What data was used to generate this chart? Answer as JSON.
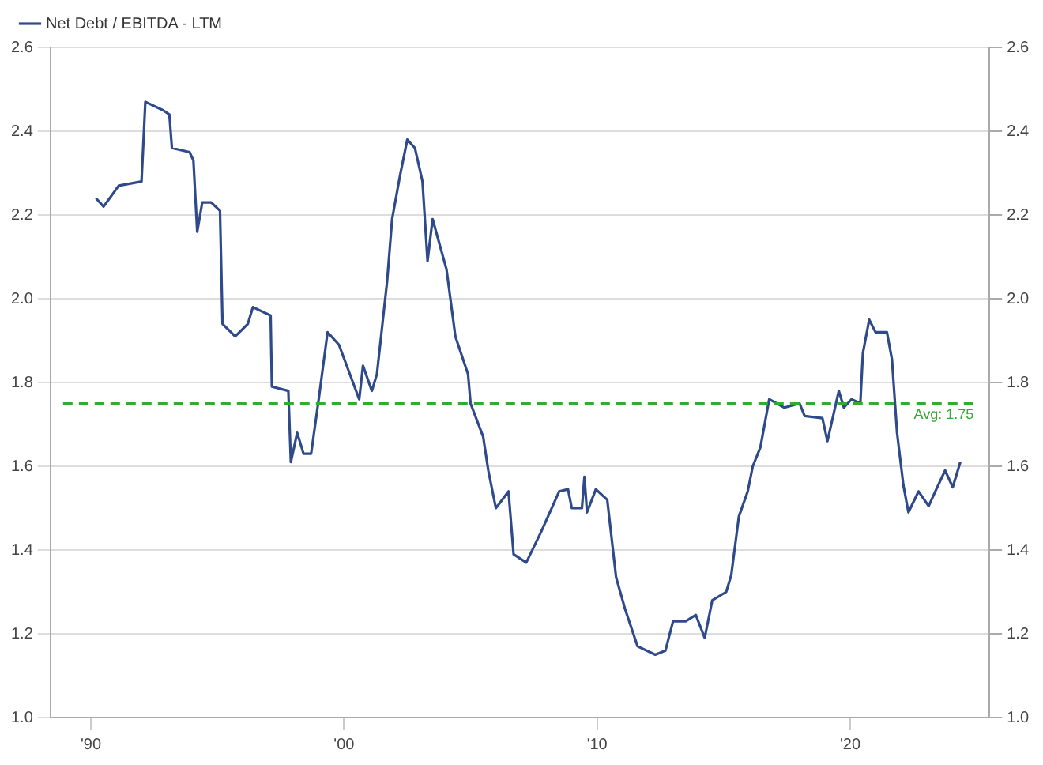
{
  "chart_data": {
    "type": "line",
    "xlim": [
      1988.4,
      2025.5
    ],
    "xticks": [
      {
        "value": 1990,
        "label": "'90"
      },
      {
        "value": 2000,
        "label": "'00"
      },
      {
        "value": 2010,
        "label": "'10"
      },
      {
        "value": 2020,
        "label": "'20"
      }
    ],
    "ylim": [
      1.0,
      2.6
    ],
    "yticks": [
      {
        "value": 1,
        "label": "1.0"
      },
      1.2,
      1.4,
      1.6,
      1.8,
      {
        "value": 2,
        "label": "2.0"
      },
      2.2,
      2.4,
      2.6
    ],
    "y2lim": [
      1.0,
      2.6
    ],
    "y2ticks": [
      {
        "value": 1,
        "label": "1.0"
      },
      1.2,
      1.4,
      1.6,
      1.8,
      {
        "value": 2,
        "label": "2.0"
      },
      2.2,
      2.4,
      2.6
    ],
    "grid": "y",
    "legend": "top left",
    "marker": "none",
    "line_style": "solid",
    "ref_lines": [
      {
        "axis": "y",
        "value": 1.75,
        "label": "Avg: 1.75",
        "color": "#33aa33",
        "line_style": "dashed"
      }
    ],
    "series": [
      {
        "name": "Net Debt / EBITDA - LTM",
        "color": "#2f4a8a",
        "x": [
          1990.2,
          1990.5,
          1991.1,
          1992.0,
          1992.15,
          1992.85,
          1993.1,
          1993.2,
          1993.9,
          1994.05,
          1994.2,
          1994.4,
          1994.75,
          1995.1,
          1995.2,
          1995.7,
          1996.2,
          1996.4,
          1997.1,
          1997.15,
          1997.8,
          1997.9,
          1998.15,
          1998.4,
          1998.7,
          1999.0,
          1999.35,
          1999.8,
          2000.6,
          2000.75,
          2001.1,
          2001.3,
          2001.7,
          2001.9,
          2002.2,
          2002.5,
          2002.8,
          2003.1,
          2003.3,
          2003.5,
          2004.05,
          2004.4,
          2004.9,
          2005.0,
          2005.5,
          2005.7,
          2006.0,
          2006.5,
          2006.7,
          2007.2,
          2007.8,
          2008.5,
          2008.85,
          2009.0,
          2009.4,
          2009.5,
          2009.6,
          2009.95,
          2010.4,
          2010.75,
          2011.1,
          2011.6,
          2012.3,
          2012.7,
          2013.0,
          2013.5,
          2013.9,
          2014.25,
          2014.55,
          2015.1,
          2015.3,
          2015.6,
          2015.95,
          2016.15,
          2016.45,
          2016.8,
          2017.4,
          2018.0,
          2018.2,
          2018.9,
          2019.1,
          2019.55,
          2019.75,
          2020.05,
          2020.4,
          2020.5,
          2020.75,
          2021.0,
          2021.45,
          2021.65,
          2021.85,
          2022.1,
          2022.3,
          2022.7,
          2023.1,
          2023.4,
          2023.75,
          2024.05,
          2024.35
        ],
        "values": [
          2.24,
          2.22,
          2.27,
          2.28,
          2.47,
          2.45,
          2.44,
          2.36,
          2.35,
          2.33,
          2.16,
          2.23,
          2.23,
          2.21,
          1.94,
          1.91,
          1.94,
          1.98,
          1.96,
          1.79,
          1.78,
          1.61,
          1.68,
          1.63,
          1.63,
          1.76,
          1.92,
          1.89,
          1.76,
          1.84,
          1.78,
          1.82,
          2.04,
          2.19,
          2.29,
          2.38,
          2.36,
          2.28,
          2.09,
          2.19,
          2.07,
          1.91,
          1.82,
          1.75,
          1.67,
          1.59,
          1.5,
          1.54,
          1.39,
          1.37,
          1.445,
          1.54,
          1.545,
          1.5,
          1.5,
          1.575,
          1.49,
          1.545,
          1.52,
          1.335,
          1.26,
          1.17,
          1.15,
          1.16,
          1.23,
          1.23,
          1.245,
          1.19,
          1.28,
          1.3,
          1.34,
          1.48,
          1.54,
          1.6,
          1.645,
          1.76,
          1.74,
          1.75,
          1.72,
          1.715,
          1.66,
          1.78,
          1.74,
          1.76,
          1.75,
          1.87,
          1.95,
          1.92,
          1.92,
          1.855,
          1.68,
          1.555,
          1.49,
          1.54,
          1.505,
          1.545,
          1.59,
          1.55,
          1.61
        ]
      }
    ]
  }
}
